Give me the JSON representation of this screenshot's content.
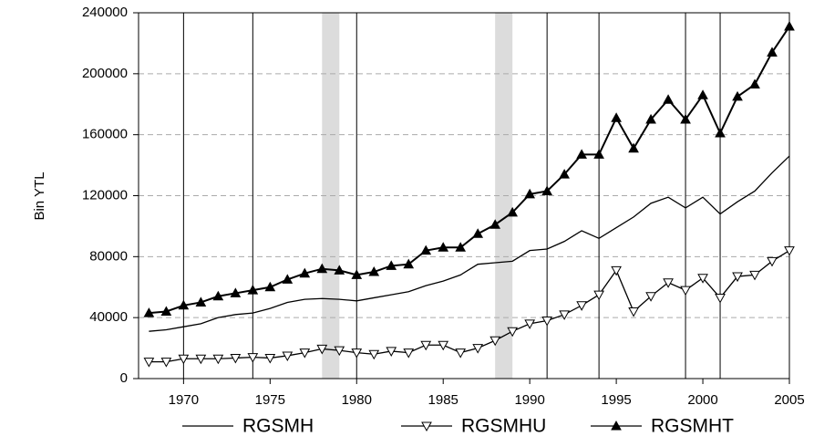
{
  "chart_data": {
    "type": "line",
    "ylabel": "Bin YTL",
    "x": [
      1968,
      1969,
      1970,
      1971,
      1972,
      1973,
      1974,
      1975,
      1976,
      1977,
      1978,
      1979,
      1980,
      1981,
      1982,
      1983,
      1984,
      1985,
      1986,
      1987,
      1988,
      1989,
      1990,
      1991,
      1992,
      1993,
      1994,
      1995,
      1996,
      1997,
      1998,
      1999,
      2000,
      2001,
      2002,
      2003,
      2004,
      2005
    ],
    "series": [
      {
        "name": "RGSMH",
        "color": "#000000",
        "marker": "none",
        "values": [
          31000,
          32000,
          34000,
          36000,
          40000,
          42000,
          43000,
          46000,
          50000,
          52000,
          52500,
          52000,
          51000,
          53000,
          55000,
          57000,
          61000,
          64000,
          68000,
          75000,
          76000,
          77000,
          84000,
          85000,
          90000,
          97000,
          92000,
          99000,
          106000,
          115000,
          119000,
          112000,
          119000,
          108000,
          116000,
          123000,
          135000,
          146000
        ]
      },
      {
        "name": "RGSMHU",
        "color": "#000000",
        "marker": "triangle-down-open",
        "values": [
          11000,
          11000,
          13000,
          13000,
          13000,
          13500,
          14000,
          13500,
          15000,
          17000,
          19500,
          18500,
          17000,
          16000,
          18000,
          17000,
          22000,
          22000,
          17000,
          20000,
          25000,
          31000,
          36000,
          38000,
          42000,
          48000,
          55000,
          71000,
          44000,
          54000,
          63000,
          58000,
          66000,
          53000,
          67000,
          68000,
          77000,
          84000
        ]
      },
      {
        "name": "RGSMHT",
        "color": "#000000",
        "marker": "triangle-up-filled",
        "values": [
          43000,
          44000,
          48000,
          50000,
          54000,
          56000,
          58000,
          60000,
          65000,
          69000,
          72000,
          71000,
          68000,
          70000,
          74000,
          75000,
          84000,
          86000,
          86000,
          95000,
          101000,
          109000,
          121000,
          123000,
          134000,
          147000,
          147000,
          171000,
          151000,
          170000,
          183000,
          170000,
          186000,
          161000,
          185000,
          193000,
          214000,
          231000
        ]
      }
    ],
    "xlim": [
      1967.4,
      2005
    ],
    "xticks": [
      1970,
      1975,
      1980,
      1985,
      1990,
      1995,
      2000,
      2005
    ],
    "ylim": [
      0,
      240000
    ],
    "yticks": [
      0,
      40000,
      80000,
      120000,
      160000,
      200000,
      240000
    ],
    "grid": true,
    "vlines": [
      1970,
      1974,
      1980,
      1991,
      1994,
      1999,
      2001
    ],
    "shaded": [
      [
        1978,
        1979
      ],
      [
        1988,
        1989
      ]
    ],
    "legend": "bottom"
  }
}
